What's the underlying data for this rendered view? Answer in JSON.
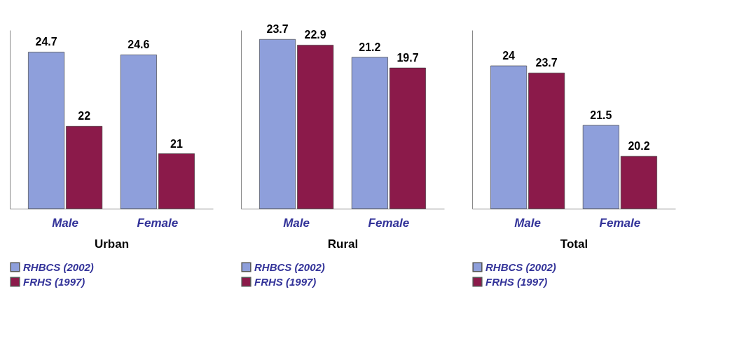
{
  "chart_data": [
    {
      "type": "bar",
      "categories": [
        "Male",
        "Female"
      ],
      "xlabel": "Urban",
      "ylim": [
        19,
        25.5
      ],
      "tick_labels": "x",
      "data_labels": true,
      "legend": "bottom",
      "series": [
        {
          "name": "RHBCS (2002)",
          "color": "#8e9fdb",
          "values": [
            24.7,
            24.6
          ]
        },
        {
          "name": "FRHS (1997)",
          "color": "#8b1a4a",
          "values": [
            22,
            21
          ]
        }
      ]
    },
    {
      "type": "bar",
      "categories": [
        "Male",
        "Female"
      ],
      "xlabel": "Rural",
      "ylim": [
        0,
        25
      ],
      "tick_labels": "x",
      "data_labels": true,
      "legend": "bottom",
      "series": [
        {
          "name": "RHBCS (2002)",
          "color": "#8e9fdb",
          "values": [
            23.7,
            21.2
          ]
        },
        {
          "name": "FRHS (1997)",
          "color": "#8b1a4a",
          "values": [
            22.9,
            19.7
          ]
        }
      ]
    },
    {
      "type": "bar",
      "categories": [
        "Male",
        "Female"
      ],
      "xlabel": "Total",
      "ylim": [
        18,
        25.5
      ],
      "tick_labels": "x",
      "data_labels": true,
      "legend": "bottom",
      "series": [
        {
          "name": "RHBCS (2002)",
          "color": "#8e9fdb",
          "values": [
            24,
            21.5
          ]
        },
        {
          "name": "FRHS (1997)",
          "color": "#8b1a4a",
          "values": [
            23.7,
            20.2
          ]
        }
      ]
    }
  ]
}
